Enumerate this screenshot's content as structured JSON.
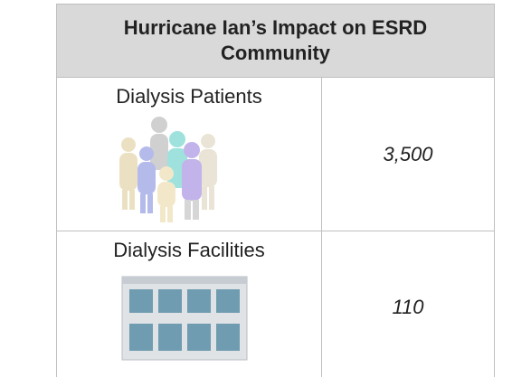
{
  "header": {
    "title": "Hurricane Ian’s Impact on ESRD Community"
  },
  "table": {
    "rows": [
      [
        "Dialysis Patients",
        "3,500"
      ],
      [
        "Dialysis Facilities",
        "110"
      ]
    ]
  }
}
